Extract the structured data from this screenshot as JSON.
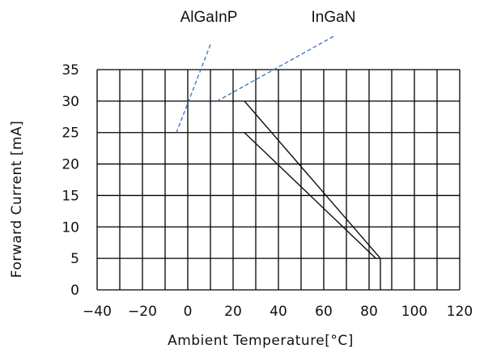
{
  "chart_data": {
    "type": "line",
    "title": "",
    "xlabel": "Ambient  Temperature[°C]",
    "ylabel": "Forward  Current  [mA]",
    "xlim": [
      -40,
      120
    ],
    "ylim": [
      0,
      35
    ],
    "x_major_ticks": [
      -40,
      -20,
      0,
      20,
      40,
      60,
      80,
      100,
      120
    ],
    "x_tick_labels": [
      "−40",
      "−20",
      "0",
      "20",
      "40",
      "60",
      "80",
      "100",
      "120"
    ],
    "y_major_ticks": [
      0,
      5,
      10,
      15,
      20,
      25,
      30,
      35
    ],
    "y_tick_labels": [
      "0",
      "5",
      "10",
      "15",
      "20",
      "25",
      "30",
      "35"
    ],
    "grid": true,
    "grid_x_step": 10,
    "grid_y_step": 5,
    "series": [
      {
        "name": "InGaN",
        "x": [
          25,
          85,
          85
        ],
        "y": [
          30,
          5,
          0
        ]
      },
      {
        "name": "AlGaInP",
        "x": [
          25,
          83,
          85
        ],
        "y": [
          25,
          5,
          5
        ]
      }
    ],
    "annotations": [
      {
        "text": "AlGaInP",
        "target_x": -5,
        "target_y": 25
      },
      {
        "text": "InGaN",
        "target_x": 13,
        "target_y": 30
      }
    ]
  }
}
